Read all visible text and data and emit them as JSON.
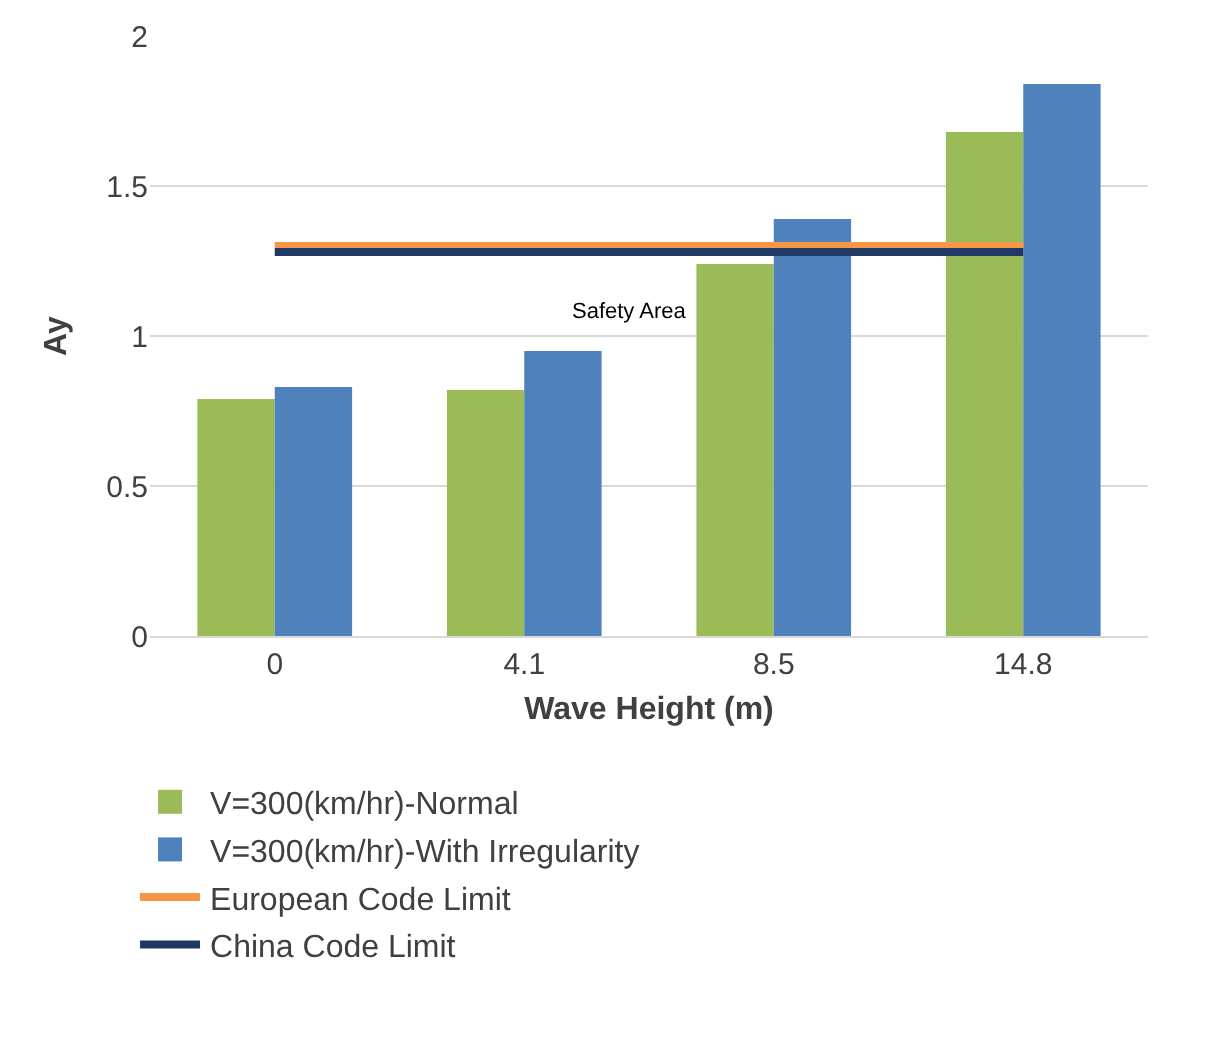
{
  "chart_data": {
    "type": "bar",
    "xlabel": "Wave Height (m)",
    "ylabel": "Ay",
    "categories": [
      "0",
      "4.1",
      "8.5",
      "14.8"
    ],
    "series": [
      {
        "name": "V=300(km/hr)-Normal",
        "color": "#9bbb59",
        "values": [
          0.79,
          0.82,
          1.24,
          1.68
        ]
      },
      {
        "name": "V=300(km/hr)-With Irregularity",
        "color": "#4f81bd",
        "values": [
          0.83,
          0.95,
          1.39,
          1.84
        ]
      },
      {
        "name": "European Code Limit",
        "type": "line",
        "color": "#f79646",
        "values": [
          1.3,
          1.3,
          1.3,
          1.3
        ]
      },
      {
        "name": "China Code Limit",
        "type": "line",
        "color": "#1f3864",
        "values": [
          1.28,
          1.28,
          1.28,
          1.28
        ]
      }
    ],
    "ylim": [
      0,
      2
    ],
    "yticks": [
      0,
      0.5,
      1,
      1.5,
      2
    ],
    "grid": "y",
    "legend": "bottom",
    "annotations": [
      "Safety Area"
    ]
  }
}
